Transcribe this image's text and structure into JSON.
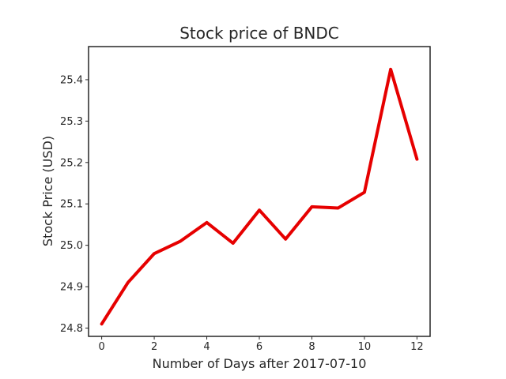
{
  "chart_data": {
    "type": "line",
    "title": "Stock price of BNDC",
    "xlabel": "Number of Days after 2017-07-10",
    "ylabel": "Stock Price (USD)",
    "x": [
      0,
      1,
      2,
      3,
      4,
      5,
      6,
      7,
      8,
      9,
      10,
      11,
      12
    ],
    "series": [
      {
        "values": [
          24.81,
          24.91,
          24.98,
          25.01,
          25.055,
          25.005,
          25.085,
          25.015,
          25.093,
          25.09,
          25.128,
          25.425,
          25.208
        ],
        "color": "#e60000"
      }
    ],
    "xlim": [
      -0.5,
      12.5
    ],
    "ylim": [
      24.78,
      25.48
    ],
    "xticks": [
      0,
      2,
      4,
      6,
      8,
      10,
      12
    ],
    "xtick_labels": [
      "0",
      "2",
      "4",
      "6",
      "8",
      "10",
      "12"
    ],
    "yticks": [
      24.8,
      24.9,
      25.0,
      25.1,
      25.2,
      25.3,
      25.4
    ],
    "ytick_labels": [
      "24.8",
      "24.9",
      "25.0",
      "25.1",
      "25.2",
      "25.3",
      "25.4"
    ],
    "grid": false,
    "legend": false,
    "axis_color": "#262626",
    "text_color": "#262626"
  }
}
